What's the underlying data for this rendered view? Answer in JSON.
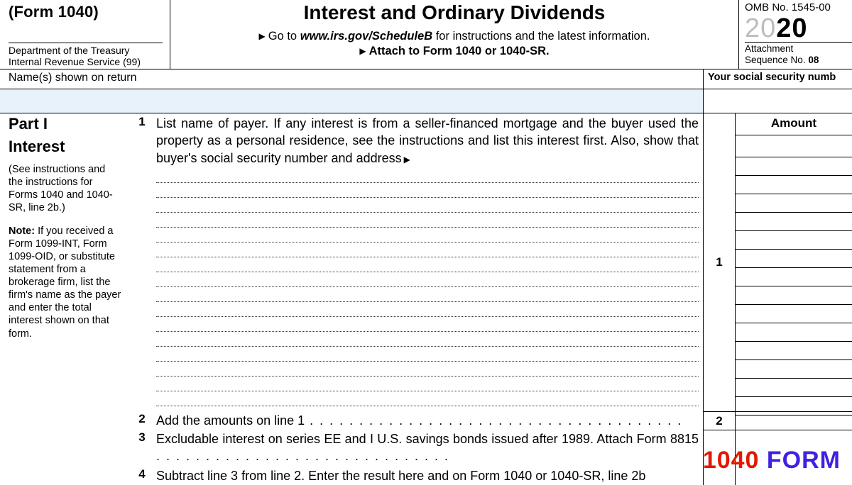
{
  "header": {
    "form_ref": "(Form 1040)",
    "department": "Department of the Treasury\nInternal Revenue Service (99)",
    "title": "Interest and Ordinary Dividends",
    "instruction1_prefix": "Go to ",
    "instruction1_italic": "www.irs.gov/ScheduleB",
    "instruction1_suffix": " for instructions and the latest information.",
    "instruction2": "Attach to Form 1040 or 1040-SR.",
    "omb": "OMB No. 1545-00",
    "year_grey": "20",
    "year_bold": "20",
    "attachment_line1": "Attachment",
    "attachment_line2": "Sequence No. 08"
  },
  "name_row": {
    "label": "Name(s) shown on return",
    "ssn_label": "Your social security numb"
  },
  "part1": {
    "part_label": "Part I",
    "section": "Interest",
    "see": "(See instructions and the instructions for Forms 1040 and 1040-SR, line 2b.)",
    "note_label": "Note:",
    "note_text": " If you received a Form 1099-INT, Form 1099-OID, or substitute statement from a brokerage firm, list the firm's name as the payer and enter the total interest shown on that form.",
    "amount_heading": "Amount",
    "line1": {
      "num": "1",
      "text": "List name of payer. If any interest is from a seller-financed mortgage and the buyer used the property as a personal residence, see the instructions and list this interest first. Also, show that buyer's social security number and address",
      "amount_row_num": "1",
      "payer_line_count": 16,
      "amount_line_count": 15
    },
    "line2": {
      "num": "2",
      "text": "Add the amounts on line 1",
      "amount_row_num": "2"
    },
    "line3": {
      "num": "3",
      "text_a": "Excludable interest on series EE and I U.S. savings bonds issued after 1989. Attach Form 8815"
    },
    "line4": {
      "num": "4",
      "text": "Subtract line 3 from line 2. Enter the result here and on Form 1040 or 1040-SR, line 2b"
    }
  },
  "watermark": {
    "part1": "1040",
    "part2": " FORM"
  },
  "colors": {
    "fill_blue": "#e8f2fb",
    "wm_red": "#e11900",
    "wm_blue": "#4021e0"
  }
}
